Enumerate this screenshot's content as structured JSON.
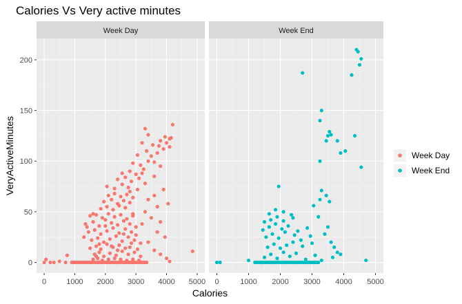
{
  "chart_data": {
    "type": "scatter",
    "title": "Calories Vs Very active minutes",
    "xlabel": "Calories",
    "ylabel": "VeryActiveMinutes",
    "xlim": [
      -250,
      5250
    ],
    "ylim": [
      -10.5,
      221
    ],
    "xticks": [
      0,
      1000,
      2000,
      3000,
      4000,
      5000
    ],
    "yticks": [
      0,
      50,
      100,
      150,
      200
    ],
    "grid": true,
    "legend_position": "right",
    "panels": [
      {
        "name": "Week Day",
        "color": "#F8766D",
        "points": [
          [
            0,
            0
          ],
          [
            60,
            3
          ],
          [
            200,
            0
          ],
          [
            320,
            0
          ],
          [
            500,
            1
          ],
          [
            700,
            0
          ],
          [
            750,
            7
          ],
          [
            900,
            0
          ],
          [
            950,
            0
          ],
          [
            1000,
            0
          ],
          [
            1050,
            0
          ],
          [
            1100,
            0
          ],
          [
            1150,
            0
          ],
          [
            1200,
            0
          ],
          [
            1250,
            0
          ],
          [
            1300,
            0
          ],
          [
            1350,
            0
          ],
          [
            1400,
            0
          ],
          [
            1450,
            0
          ],
          [
            1500,
            0
          ],
          [
            1550,
            0
          ],
          [
            1600,
            0
          ],
          [
            1650,
            0
          ],
          [
            1700,
            0
          ],
          [
            1750,
            0
          ],
          [
            1800,
            0
          ],
          [
            1850,
            0
          ],
          [
            1900,
            0
          ],
          [
            1950,
            0
          ],
          [
            2000,
            0
          ],
          [
            2050,
            0
          ],
          [
            2100,
            0
          ],
          [
            2150,
            0
          ],
          [
            2200,
            0
          ],
          [
            2250,
            0
          ],
          [
            2300,
            0
          ],
          [
            2350,
            0
          ],
          [
            2400,
            0
          ],
          [
            2450,
            0
          ],
          [
            2500,
            0
          ],
          [
            2550,
            0
          ],
          [
            2600,
            0
          ],
          [
            2650,
            0
          ],
          [
            2700,
            0
          ],
          [
            2750,
            0
          ],
          [
            2800,
            0
          ],
          [
            2850,
            0
          ],
          [
            2900,
            0
          ],
          [
            2950,
            0
          ],
          [
            3000,
            0
          ],
          [
            3050,
            0
          ],
          [
            3100,
            0
          ],
          [
            3150,
            0
          ],
          [
            3200,
            0
          ],
          [
            3250,
            0
          ],
          [
            3300,
            0
          ],
          [
            3350,
            0
          ],
          [
            1600,
            3
          ],
          [
            1750,
            4
          ],
          [
            1900,
            2
          ],
          [
            2100,
            3
          ],
          [
            2300,
            4
          ],
          [
            2500,
            3
          ],
          [
            2700,
            2
          ],
          [
            2900,
            3
          ],
          [
            3100,
            2
          ],
          [
            1650,
            8
          ],
          [
            1800,
            10
          ],
          [
            1950,
            6
          ],
          [
            2150,
            9
          ],
          [
            2350,
            7
          ],
          [
            2550,
            11
          ],
          [
            2750,
            8
          ],
          [
            2950,
            10
          ],
          [
            3150,
            6
          ],
          [
            1500,
            14
          ],
          [
            1700,
            16
          ],
          [
            1850,
            13
          ],
          [
            2050,
            18
          ],
          [
            2250,
            15
          ],
          [
            2450,
            17
          ],
          [
            2650,
            14
          ],
          [
            2850,
            19
          ],
          [
            3050,
            13
          ],
          [
            1550,
            22
          ],
          [
            1750,
            24
          ],
          [
            1950,
            20
          ],
          [
            2150,
            23
          ],
          [
            2350,
            26
          ],
          [
            2550,
            21
          ],
          [
            2750,
            25
          ],
          [
            2950,
            22
          ],
          [
            3150,
            19
          ],
          [
            1450,
            30
          ],
          [
            1650,
            32
          ],
          [
            1850,
            28
          ],
          [
            2050,
            31
          ],
          [
            2250,
            34
          ],
          [
            2450,
            29
          ],
          [
            2650,
            33
          ],
          [
            2850,
            30
          ],
          [
            1350,
            38
          ],
          [
            1600,
            40
          ],
          [
            1800,
            36
          ],
          [
            2000,
            42
          ],
          [
            2200,
            39
          ],
          [
            2400,
            37
          ],
          [
            2600,
            41
          ],
          [
            2800,
            38
          ],
          [
            3000,
            35
          ],
          [
            1500,
            46
          ],
          [
            1700,
            47
          ],
          [
            1900,
            44
          ],
          [
            2100,
            48
          ],
          [
            2300,
            45
          ],
          [
            2500,
            47
          ],
          [
            2700,
            43
          ],
          [
            2900,
            46
          ],
          [
            1850,
            53
          ],
          [
            2050,
            55
          ],
          [
            2250,
            52
          ],
          [
            2450,
            56
          ],
          [
            2650,
            54
          ],
          [
            1950,
            60
          ],
          [
            2200,
            62
          ],
          [
            2400,
            58
          ],
          [
            2600,
            61
          ],
          [
            2800,
            59
          ],
          [
            2100,
            66
          ],
          [
            2300,
            68
          ],
          [
            2500,
            65
          ],
          [
            2700,
            67
          ],
          [
            2900,
            64
          ],
          [
            2050,
            75
          ],
          [
            2300,
            73
          ],
          [
            2550,
            77
          ],
          [
            2750,
            74
          ],
          [
            3050,
            72
          ],
          [
            2400,
            82
          ],
          [
            2650,
            84
          ],
          [
            2850,
            80
          ],
          [
            3100,
            83
          ],
          [
            3300,
            78
          ],
          [
            2550,
            88
          ],
          [
            2800,
            90
          ],
          [
            3000,
            87
          ],
          [
            3250,
            92
          ],
          [
            2900,
            98
          ],
          [
            3150,
            96
          ],
          [
            3400,
            100
          ],
          [
            3600,
            99
          ],
          [
            3050,
            106
          ],
          [
            3350,
            110
          ],
          [
            3700,
            108
          ],
          [
            3900,
            112
          ],
          [
            3200,
            118
          ],
          [
            3550,
            116
          ],
          [
            3800,
            120
          ],
          [
            4100,
            122
          ],
          [
            3400,
            126
          ],
          [
            3950,
            124
          ],
          [
            4150,
            123
          ],
          [
            3750,
            115
          ],
          [
            4000,
            118
          ],
          [
            4100,
            114
          ],
          [
            3300,
            132
          ],
          [
            4200,
            136
          ],
          [
            3500,
            105
          ],
          [
            3800,
            95
          ],
          [
            3200,
            88
          ],
          [
            3600,
            85
          ],
          [
            2800,
            70
          ],
          [
            3400,
            62
          ],
          [
            3600,
            66
          ],
          [
            3900,
            72
          ],
          [
            3300,
            50
          ],
          [
            3700,
            55
          ],
          [
            4050,
            58
          ],
          [
            2900,
            48
          ],
          [
            3500,
            44
          ],
          [
            3800,
            40
          ],
          [
            3200,
            38
          ],
          [
            3700,
            30
          ],
          [
            3950,
            25
          ],
          [
            3400,
            20
          ],
          [
            3600,
            12
          ],
          [
            3800,
            8
          ],
          [
            4000,
            4
          ],
          [
            4100,
            1
          ],
          [
            4850,
            11
          ],
          [
            2200,
            16
          ],
          [
            2600,
            28
          ],
          [
            2000,
            36
          ],
          [
            1800,
            18
          ],
          [
            1700,
            6
          ],
          [
            2400,
            12
          ],
          [
            2800,
            15
          ],
          [
            3000,
            27
          ],
          [
            1600,
            48
          ],
          [
            1400,
            35
          ],
          [
            1300,
            25
          ]
        ]
      },
      {
        "name": "Week End",
        "color": "#00BFC4",
        "points": [
          [
            0,
            0
          ],
          [
            100,
            0
          ],
          [
            1000,
            2
          ],
          [
            1200,
            0
          ],
          [
            1250,
            0
          ],
          [
            1300,
            0
          ],
          [
            1350,
            0
          ],
          [
            1400,
            0
          ],
          [
            1450,
            0
          ],
          [
            1500,
            0
          ],
          [
            1550,
            0
          ],
          [
            1600,
            0
          ],
          [
            1650,
            0
          ],
          [
            1700,
            0
          ],
          [
            1750,
            0
          ],
          [
            1800,
            0
          ],
          [
            1850,
            0
          ],
          [
            1900,
            0
          ],
          [
            1950,
            0
          ],
          [
            2000,
            0
          ],
          [
            2050,
            0
          ],
          [
            2100,
            0
          ],
          [
            2150,
            0
          ],
          [
            2200,
            0
          ],
          [
            2250,
            0
          ],
          [
            2300,
            0
          ],
          [
            2350,
            0
          ],
          [
            2400,
            0
          ],
          [
            2450,
            0
          ],
          [
            2500,
            0
          ],
          [
            2550,
            0
          ],
          [
            2600,
            0
          ],
          [
            2650,
            0
          ],
          [
            2700,
            0
          ],
          [
            2750,
            0
          ],
          [
            2800,
            0
          ],
          [
            2850,
            0
          ],
          [
            2900,
            0
          ],
          [
            2950,
            0
          ],
          [
            3000,
            0
          ],
          [
            3050,
            0
          ],
          [
            3100,
            0
          ],
          [
            3150,
            0
          ],
          [
            3200,
            0
          ],
          [
            1500,
            5
          ],
          [
            1700,
            8
          ],
          [
            1900,
            4
          ],
          [
            2100,
            10
          ],
          [
            2300,
            6
          ],
          [
            2500,
            9
          ],
          [
            2800,
            3
          ],
          [
            3100,
            7
          ],
          [
            3300,
            2
          ],
          [
            1600,
            15
          ],
          [
            1800,
            18
          ],
          [
            2000,
            14
          ],
          [
            2200,
            17
          ],
          [
            2400,
            20
          ],
          [
            2700,
            16
          ],
          [
            3000,
            19
          ],
          [
            1550,
            25
          ],
          [
            1750,
            28
          ],
          [
            1950,
            24
          ],
          [
            2150,
            30
          ],
          [
            2450,
            27
          ],
          [
            2650,
            22
          ],
          [
            2950,
            26
          ],
          [
            1450,
            32
          ],
          [
            1650,
            35
          ],
          [
            1850,
            38
          ],
          [
            2050,
            33
          ],
          [
            2250,
            36
          ],
          [
            2550,
            31
          ],
          [
            2850,
            34
          ],
          [
            1500,
            40
          ],
          [
            1700,
            42
          ],
          [
            1900,
            45
          ],
          [
            2100,
            41
          ],
          [
            2400,
            44
          ],
          [
            1650,
            48
          ],
          [
            1850,
            52
          ],
          [
            2100,
            50
          ],
          [
            2350,
            47
          ],
          [
            1950,
            75
          ],
          [
            3050,
            56
          ],
          [
            3250,
            62
          ],
          [
            3450,
            66
          ],
          [
            3550,
            60
          ],
          [
            3300,
            71
          ],
          [
            3200,
            45
          ],
          [
            3500,
            35
          ],
          [
            3400,
            28
          ],
          [
            3600,
            20
          ],
          [
            3700,
            15
          ],
          [
            3800,
            10
          ],
          [
            3900,
            8
          ],
          [
            3650,
            5
          ],
          [
            2700,
            187
          ],
          [
            3250,
            140
          ],
          [
            3300,
            150
          ],
          [
            3450,
            120
          ],
          [
            3500,
            125
          ],
          [
            3550,
            129
          ],
          [
            3600,
            126
          ],
          [
            3800,
            120
          ],
          [
            3900,
            108
          ],
          [
            4050,
            110
          ],
          [
            3250,
            100
          ],
          [
            4250,
            185
          ],
          [
            4350,
            125
          ],
          [
            4400,
            210
          ],
          [
            4450,
            208
          ],
          [
            4500,
            195
          ],
          [
            4550,
            201
          ],
          [
            4550,
            94
          ],
          [
            4700,
            2
          ]
        ]
      }
    ]
  }
}
